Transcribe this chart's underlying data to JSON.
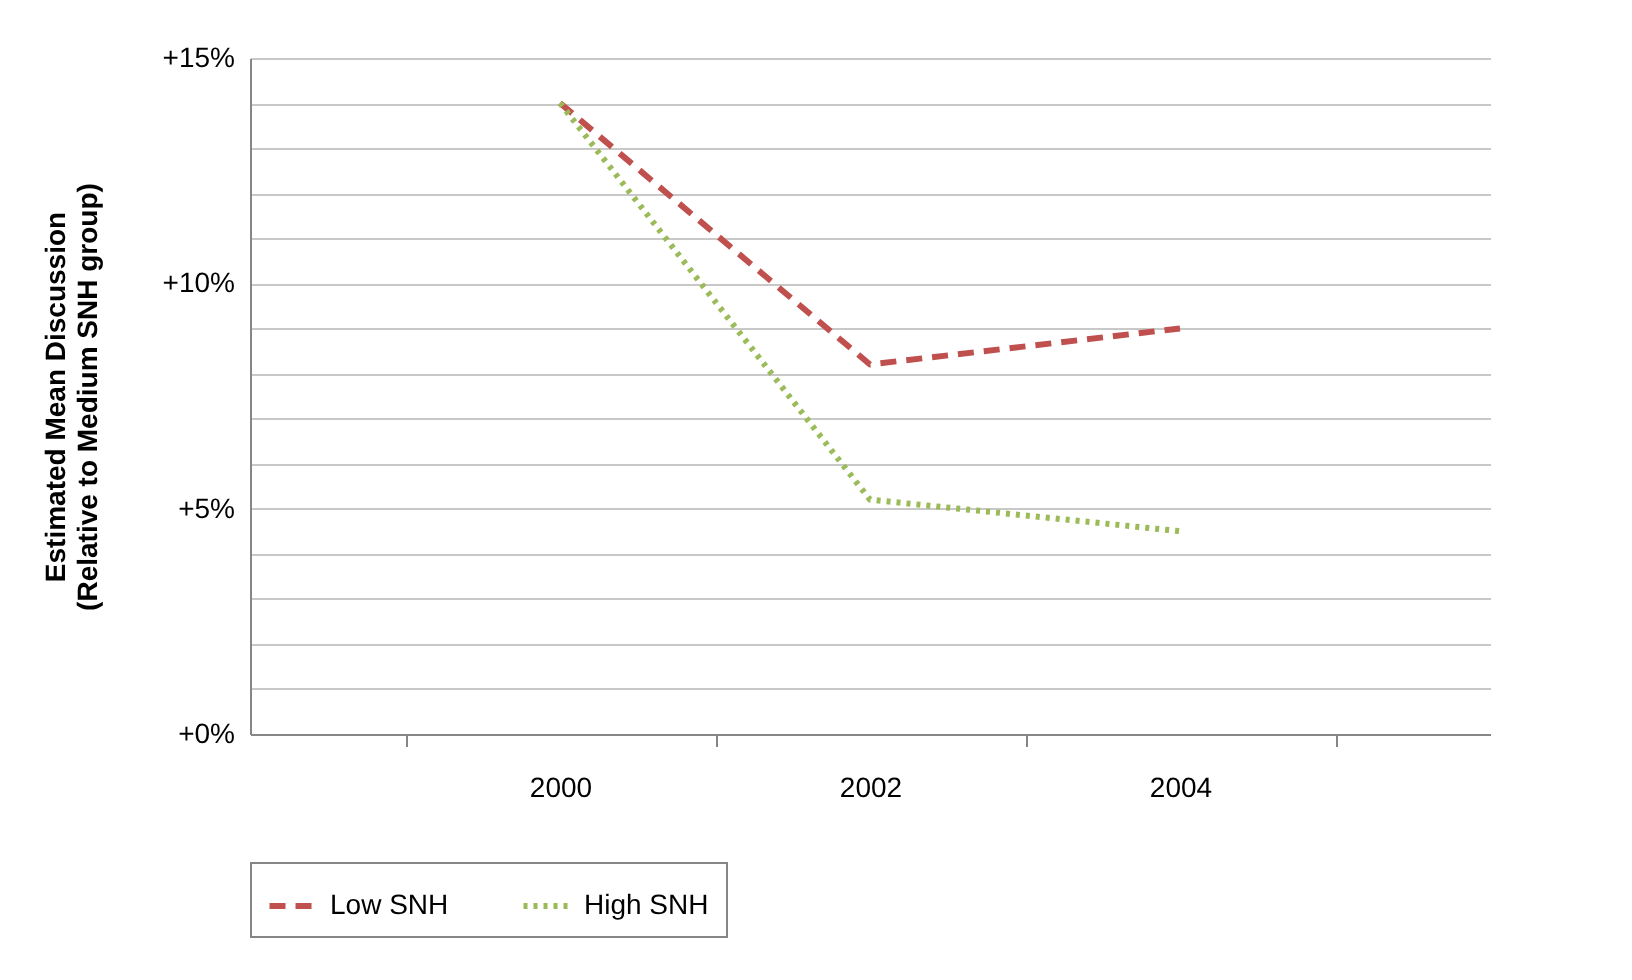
{
  "chart_data": {
    "type": "line",
    "ylabel": "Estimated Mean Discussion\n(Relative to Medium SNH group)",
    "categories": [
      "2000",
      "2002",
      "2004"
    ],
    "series": [
      {
        "name": "Low SNH",
        "color": "#c0504d",
        "line_style": "dashed",
        "values": [
          14.0,
          8.2,
          9.0
        ]
      },
      {
        "name": "High SNH",
        "color": "#9bbb59",
        "line_style": "dotted",
        "values": [
          14.0,
          5.2,
          4.5
        ]
      }
    ],
    "ylim": [
      0,
      15
    ],
    "yticks": [
      {
        "value": 0,
        "label": "+0%"
      },
      {
        "value": 1,
        "label": null
      },
      {
        "value": 2,
        "label": null
      },
      {
        "value": 3,
        "label": null
      },
      {
        "value": 4,
        "label": null
      },
      {
        "value": 5,
        "label": "+5%"
      },
      {
        "value": 6,
        "label": null
      },
      {
        "value": 7,
        "label": null
      },
      {
        "value": 8,
        "label": null
      },
      {
        "value": 9,
        "label": null
      },
      {
        "value": 10,
        "label": "+10%"
      },
      {
        "value": 11,
        "label": null
      },
      {
        "value": 12,
        "label": null
      },
      {
        "value": 13,
        "label": null
      },
      {
        "value": 14,
        "label": null
      },
      {
        "value": 15,
        "label": "+15%"
      }
    ],
    "grid": "y",
    "legend": "bottom",
    "marker": "none"
  }
}
